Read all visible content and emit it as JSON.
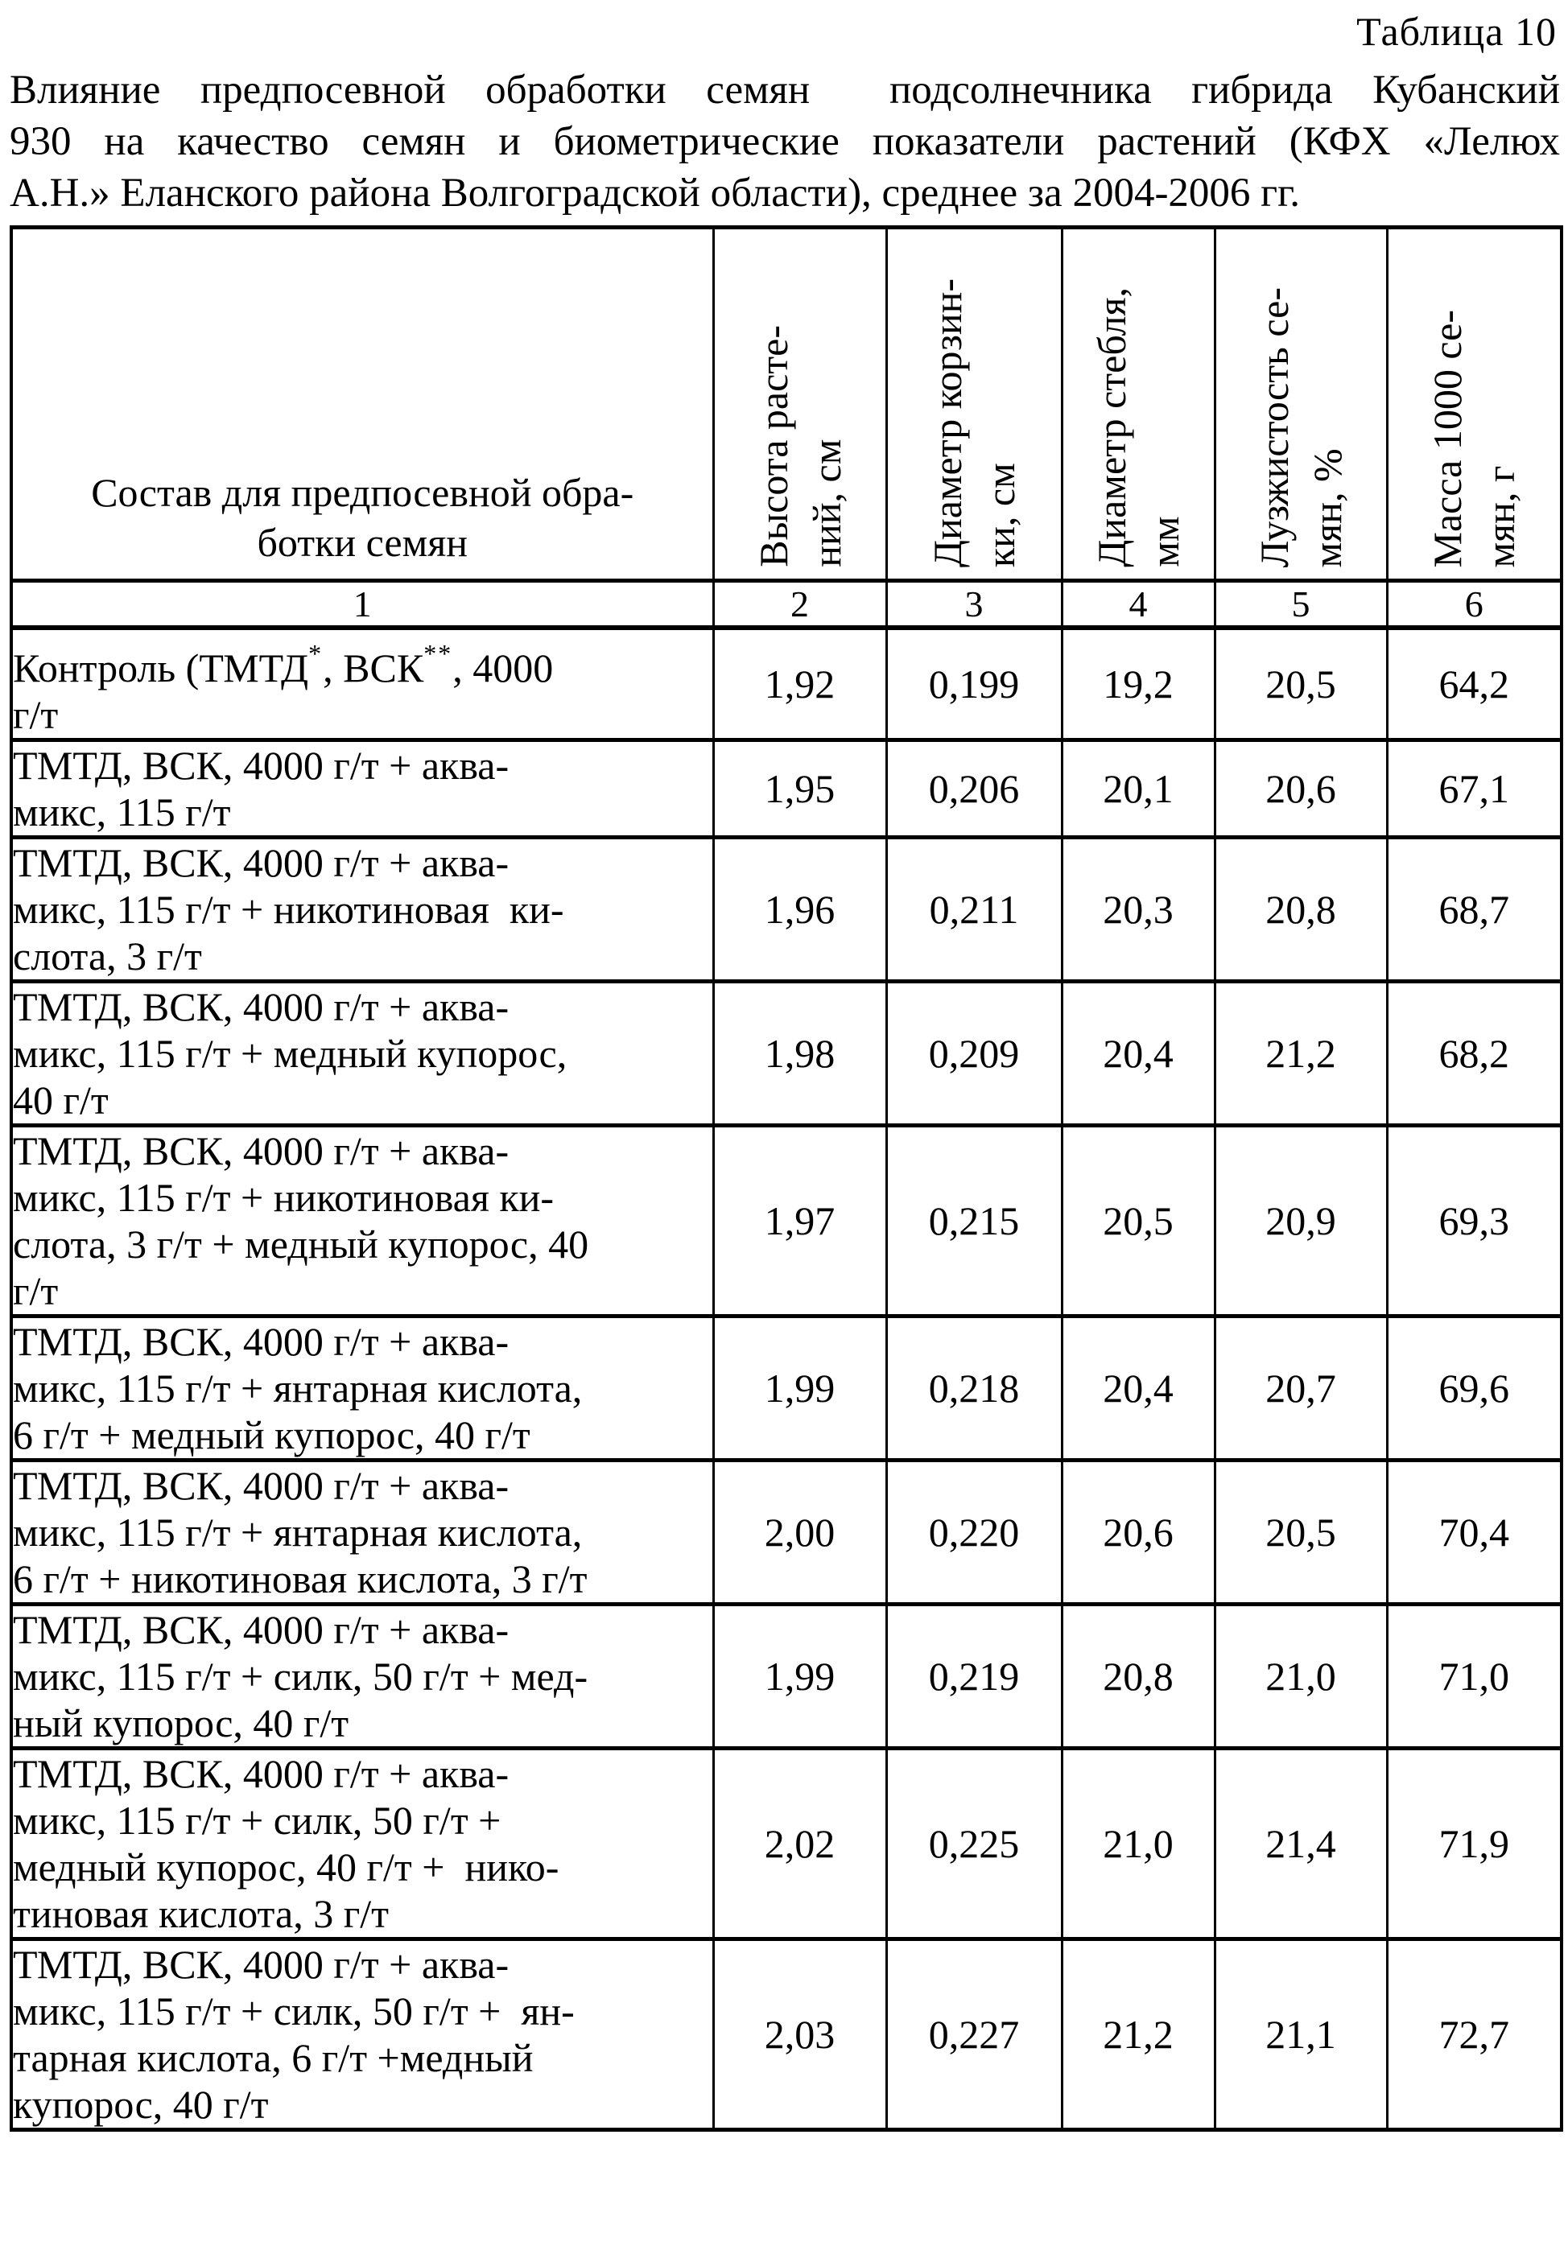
{
  "page": {
    "background_color": "#ffffff",
    "text_color": "#000000",
    "table_label": "Таблица 10",
    "caption_lines": [
      "Влияние предпосевной обработки семян  подсолнечника гибрида Кубанский",
      "930 на качество семян и биометрические показатели растений (КФХ «Лелюх",
      "А.Н.» Еланского района Волгоградской области), среднее за 2004-2006 гг."
    ]
  },
  "table": {
    "composition_header_lines": [
      "Состав для предпосевной обра-",
      "ботки семян"
    ],
    "rotated_headers": [
      {
        "lines": [
          "Высота расте-",
          "ний, см"
        ]
      },
      {
        "lines": [
          "Диаметр корзин-",
          "ки, см"
        ]
      },
      {
        "lines": [
          "Диаметр стебля,",
          "мм"
        ]
      },
      {
        "lines": [
          "Лузжистость се-",
          "мян, %"
        ]
      },
      {
        "lines": [
          "Масса 1000 се-",
          "мян, г"
        ]
      }
    ],
    "column_numbers": [
      "1",
      "2",
      "3",
      "4",
      "5",
      "6"
    ],
    "rows": [
      {
        "label_lines": [
          "Контроль (ТМТД*, ВСК**, 4000",
          "г/т"
        ],
        "values": [
          "1,92",
          "0,199",
          "19,2",
          "20,5",
          "64,2"
        ]
      },
      {
        "label_lines": [
          "ТМТД, ВСК, 4000 г/т + аква-",
          "микс, 115 г/т"
        ],
        "values": [
          "1,95",
          "0,206",
          "20,1",
          "20,6",
          "67,1"
        ]
      },
      {
        "label_lines": [
          "ТМТД, ВСК, 4000 г/т + аква-",
          "микс, 115 г/т + никотиновая  ки-",
          "слота, 3 г/т"
        ],
        "values": [
          "1,96",
          "0,211",
          "20,3",
          "20,8",
          "68,7"
        ]
      },
      {
        "label_lines": [
          "ТМТД, ВСК, 4000 г/т + аква-",
          "микс, 115 г/т + медный купорос,",
          "40 г/т"
        ],
        "values": [
          "1,98",
          "0,209",
          "20,4",
          "21,2",
          "68,2"
        ]
      },
      {
        "label_lines": [
          "ТМТД, ВСК, 4000 г/т + аква-",
          "микс, 115 г/т + никотиновая ки-",
          "слота, 3 г/т + медный купорос, 40",
          "г/т"
        ],
        "values": [
          "1,97",
          "0,215",
          "20,5",
          "20,9",
          "69,3"
        ]
      },
      {
        "label_lines": [
          "ТМТД, ВСК, 4000 г/т + аква-",
          "микс, 115 г/т + янтарная кислота,",
          "6 г/т + медный купорос, 40 г/т"
        ],
        "values": [
          "1,99",
          "0,218",
          "20,4",
          "20,7",
          "69,6"
        ]
      },
      {
        "label_lines": [
          "ТМТД, ВСК, 4000 г/т + аква-",
          "микс, 115 г/т + янтарная кислота,",
          "6 г/т + никотиновая кислота, 3 г/т"
        ],
        "values": [
          "2,00",
          "0,220",
          "20,6",
          "20,5",
          "70,4"
        ]
      },
      {
        "label_lines": [
          "ТМТД, ВСК, 4000 г/т + аква-",
          "микс, 115 г/т + силк, 50 г/т + мед-",
          "ный купорос, 40 г/т"
        ],
        "values": [
          "1,99",
          "0,219",
          "20,8",
          "21,0",
          "71,0"
        ]
      },
      {
        "label_lines": [
          "ТМТД, ВСК, 4000 г/т + аква-",
          "микс, 115 г/т + силк, 50 г/т +",
          "медный купорос, 40 г/т +  нико-",
          "тиновая кислота, 3 г/т"
        ],
        "values": [
          "2,02",
          "0,225",
          "21,0",
          "21,4",
          "71,9"
        ]
      },
      {
        "label_lines": [
          "ТМТД, ВСК, 4000 г/т + аква-",
          "микс, 115 г/т + силк, 50 г/т +  ян-",
          "тарная кислота, 6 г/т +медный",
          "купорос, 40 г/т"
        ],
        "values": [
          "2,03",
          "0,227",
          "21,2",
          "21,1",
          "72,7"
        ]
      }
    ]
  }
}
